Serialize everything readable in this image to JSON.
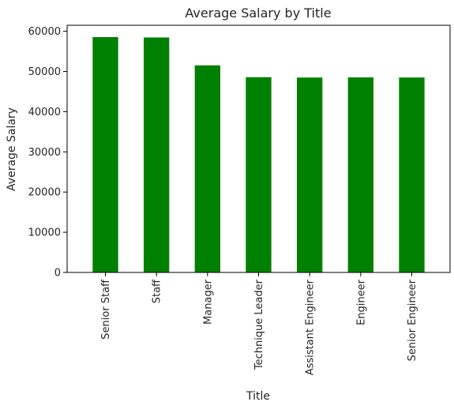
{
  "chart_data": {
    "type": "bar",
    "title": "Average Salary by Title",
    "xlabel": "Title",
    "ylabel": "Average Salary",
    "categories": [
      "Senior Staff",
      "Staff",
      "Manager",
      "Technique Leader",
      "Assistant Engineer",
      "Engineer",
      "Senior Engineer"
    ],
    "values": [
      58550,
      58465,
      51531,
      48583,
      48494,
      48535,
      48507
    ],
    "ylim": [
      0,
      61500
    ],
    "yticks": [
      0,
      10000,
      20000,
      30000,
      40000,
      50000,
      60000
    ],
    "bar_color": "#008000",
    "grid": false,
    "legend": "none"
  }
}
